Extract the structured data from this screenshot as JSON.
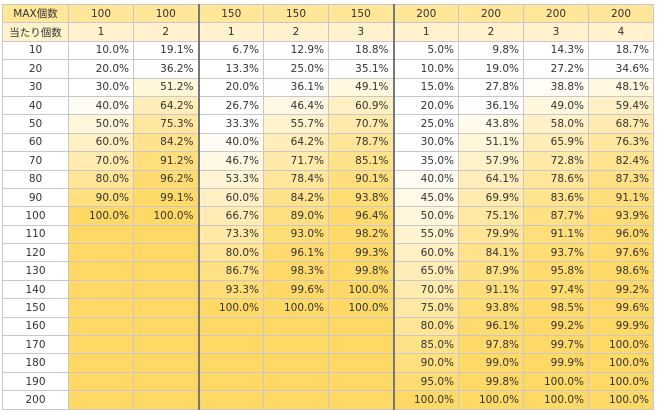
{
  "header": {
    "max_label": "MAX個数",
    "hit_label": "当たり個数",
    "max": [
      "100",
      "100",
      "150",
      "150",
      "150",
      "200",
      "200",
      "200",
      "200"
    ],
    "hits": [
      "1",
      "2",
      "1",
      "2",
      "3",
      "1",
      "2",
      "3",
      "4"
    ]
  },
  "table": {
    "rows": [
      {
        "label": "10",
        "cells": [
          "10.0%",
          "19.1%",
          "6.7%",
          "12.9%",
          "18.8%",
          "5.0%",
          "9.8%",
          "14.3%",
          "18.7%"
        ]
      },
      {
        "label": "20",
        "cells": [
          "20.0%",
          "36.2%",
          "13.3%",
          "25.0%",
          "35.1%",
          "10.0%",
          "19.0%",
          "27.2%",
          "34.6%"
        ]
      },
      {
        "label": "30",
        "cells": [
          "30.0%",
          "51.2%",
          "20.0%",
          "36.1%",
          "49.1%",
          "15.0%",
          "27.8%",
          "38.8%",
          "48.1%"
        ]
      },
      {
        "label": "40",
        "cells": [
          "40.0%",
          "64.2%",
          "26.7%",
          "46.4%",
          "60.9%",
          "20.0%",
          "36.1%",
          "49.0%",
          "59.4%"
        ]
      },
      {
        "label": "50",
        "cells": [
          "50.0%",
          "75.3%",
          "33.3%",
          "55.7%",
          "70.7%",
          "25.0%",
          "43.8%",
          "58.0%",
          "68.7%"
        ]
      },
      {
        "label": "60",
        "cells": [
          "60.0%",
          "84.2%",
          "40.0%",
          "64.2%",
          "78.7%",
          "30.0%",
          "51.1%",
          "65.9%",
          "76.3%"
        ]
      },
      {
        "label": "70",
        "cells": [
          "70.0%",
          "91.2%",
          "46.7%",
          "71.7%",
          "85.1%",
          "35.0%",
          "57.9%",
          "72.8%",
          "82.4%"
        ]
      },
      {
        "label": "80",
        "cells": [
          "80.0%",
          "96.2%",
          "53.3%",
          "78.4%",
          "90.1%",
          "40.0%",
          "64.1%",
          "78.6%",
          "87.3%"
        ]
      },
      {
        "label": "90",
        "cells": [
          "90.0%",
          "99.1%",
          "60.0%",
          "84.2%",
          "93.8%",
          "45.0%",
          "69.9%",
          "83.6%",
          "91.1%"
        ]
      },
      {
        "label": "100",
        "cells": [
          "100.0%",
          "100.0%",
          "66.7%",
          "89.0%",
          "96.4%",
          "50.0%",
          "75.1%",
          "87.7%",
          "93.9%"
        ]
      },
      {
        "label": "110",
        "cells": [
          null,
          null,
          "73.3%",
          "93.0%",
          "98.2%",
          "55.0%",
          "79.9%",
          "91.1%",
          "96.0%"
        ]
      },
      {
        "label": "120",
        "cells": [
          null,
          null,
          "80.0%",
          "96.1%",
          "99.3%",
          "60.0%",
          "84.1%",
          "93.7%",
          "97.6%"
        ]
      },
      {
        "label": "130",
        "cells": [
          null,
          null,
          "86.7%",
          "98.3%",
          "99.8%",
          "65.0%",
          "87.9%",
          "95.8%",
          "98.6%"
        ]
      },
      {
        "label": "140",
        "cells": [
          null,
          null,
          "93.3%",
          "99.6%",
          "100.0%",
          "70.0%",
          "91.1%",
          "97.4%",
          "99.2%"
        ]
      },
      {
        "label": "150",
        "cells": [
          null,
          null,
          "100.0%",
          "100.0%",
          "100.0%",
          "75.0%",
          "93.8%",
          "98.5%",
          "99.6%"
        ]
      },
      {
        "label": "160",
        "cells": [
          null,
          null,
          null,
          null,
          null,
          "80.0%",
          "96.1%",
          "99.2%",
          "99.9%"
        ]
      },
      {
        "label": "170",
        "cells": [
          null,
          null,
          null,
          null,
          null,
          "85.0%",
          "97.8%",
          "99.7%",
          "100.0%"
        ]
      },
      {
        "label": "180",
        "cells": [
          null,
          null,
          null,
          null,
          null,
          "90.0%",
          "99.0%",
          "99.9%",
          "100.0%"
        ]
      },
      {
        "label": "190",
        "cells": [
          null,
          null,
          null,
          null,
          null,
          "95.0%",
          "99.8%",
          "100.0%",
          "100.0%"
        ]
      },
      {
        "label": "200",
        "cells": [
          null,
          null,
          null,
          null,
          null,
          "100.0%",
          "100.0%",
          "100.0%",
          "100.0%"
        ]
      }
    ]
  }
}
